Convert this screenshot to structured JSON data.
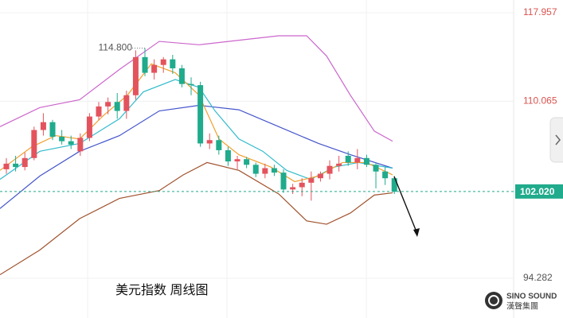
{
  "chart_data": {
    "type": "candlestick",
    "title": "美元指数 周线图",
    "logo": {
      "name": "SINO SOUND",
      "subtitle": "漢聲集團"
    },
    "up_color": "#e3535d",
    "down_color": "#1fab8c",
    "open": [
      104.0,
      104.5,
      104.2,
      105.0,
      107.5,
      108.2,
      106.9,
      106.5,
      105.6,
      106.8,
      108.7,
      109.6,
      110.0,
      109.2,
      110.6,
      114.0,
      112.6,
      113.3,
      113.8,
      113.0,
      111.6,
      111.5,
      106.3,
      106.6,
      105.7,
      104.7,
      104.9,
      104.4,
      103.6,
      104.1,
      103.7,
      102.2,
      102.4,
      102.8,
      103.2,
      103.6,
      104.3,
      105.2,
      104.6,
      105.0,
      104.4,
      103.8,
      103.2
    ],
    "high": [
      105.0,
      105.2,
      105.5,
      107.8,
      109.0,
      108.4,
      107.5,
      107.0,
      107.2,
      109.0,
      110.0,
      110.4,
      110.8,
      111.0,
      114.6,
      114.8,
      113.8,
      114.0,
      114.2,
      113.3,
      112.2,
      111.8,
      107.2,
      107.0,
      106.0,
      105.2,
      105.1,
      104.6,
      104.5,
      104.4,
      104.0,
      102.7,
      103.2,
      103.8,
      103.8,
      104.8,
      105.2,
      105.6,
      105.8,
      105.3,
      104.6,
      104.2,
      103.4
    ],
    "low": [
      103.6,
      103.8,
      103.9,
      104.8,
      107.0,
      106.6,
      106.2,
      105.8,
      105.2,
      106.5,
      108.4,
      108.9,
      108.5,
      108.5,
      110.2,
      112.3,
      112.0,
      112.6,
      112.5,
      111.3,
      110.6,
      106.0,
      105.8,
      105.3,
      104.3,
      104.0,
      104.1,
      103.3,
      103.2,
      103.4,
      101.9,
      101.8,
      101.6,
      101.2,
      102.9,
      103.1,
      103.8,
      104.3,
      104.0,
      104.2,
      102.3,
      102.6,
      101.8
    ],
    "close": [
      104.5,
      104.2,
      105.0,
      107.5,
      108.2,
      106.9,
      106.5,
      106.2,
      106.8,
      108.7,
      109.6,
      110.0,
      109.2,
      110.6,
      114.0,
      112.6,
      113.3,
      113.8,
      113.0,
      111.6,
      111.5,
      106.3,
      106.6,
      105.7,
      104.7,
      104.9,
      104.4,
      103.6,
      104.1,
      103.7,
      102.2,
      102.4,
      102.8,
      103.2,
      103.6,
      104.3,
      104.5,
      104.6,
      105.0,
      104.4,
      103.8,
      103.2,
      102.0
    ],
    "overlays": [
      {
        "color": "#cc66cc",
        "x": [
          -0.69,
          3.62,
          7.93,
          12.24,
          16.55,
          20.86,
          25.17,
          29.48,
          32.5,
          34.66,
          37.24,
          39.83,
          41.81
        ],
        "values": [
          107.8,
          109.5,
          110.2,
          112.9,
          115.4,
          115.1,
          115.5,
          115.9,
          115.9,
          114.1,
          110.6,
          107.4,
          106.5
        ]
      },
      {
        "color": "#4455cc",
        "x": [
          -0.69,
          3.62,
          7.93,
          12.24,
          16.55,
          20.86,
          25.17,
          29.48,
          33.79,
          37.24,
          41.81
        ],
        "values": [
          100.5,
          103.4,
          105.6,
          107.0,
          109.2,
          109.7,
          109.3,
          107.8,
          106.3,
          105.3,
          104.1
        ]
      },
      {
        "color": "#a0522d",
        "x": [
          -0.69,
          3.62,
          7.93,
          12.24,
          16.55,
          19.14,
          21.72,
          25.17,
          29.48,
          32.5,
          34.66,
          37.24,
          39.83,
          41.81
        ],
        "values": [
          94.6,
          96.8,
          99.6,
          101.4,
          102.1,
          103.5,
          104.6,
          103.9,
          101.8,
          99.4,
          99.1,
          100.1,
          101.7,
          101.9
        ]
      },
      {
        "color": "#33bbcc",
        "x": [
          -0.69,
          3.62,
          7.93,
          12.24,
          14.83,
          18.28,
          20.86,
          22.59,
          25.17,
          27.76,
          30.34,
          32.93,
          35.52,
          38.1,
          41.81
        ],
        "values": [
          103.1,
          105.6,
          106.3,
          108.5,
          110.9,
          112.0,
          111.3,
          109.2,
          106.7,
          105.6,
          103.9,
          103.1,
          104.2,
          104.6,
          104.1
        ]
      },
      {
        "color": "#f0a030",
        "x": [
          -0.69,
          2.76,
          5.34,
          7.93,
          10.52,
          13.1,
          15.69,
          18.28,
          20.86,
          23.02,
          25.17,
          28.62,
          31.21,
          33.79,
          36.38,
          38.97,
          41.81
        ],
        "values": [
          103.9,
          106.0,
          107.0,
          106.7,
          108.8,
          110.6,
          113.4,
          112.6,
          110.6,
          106.7,
          105.3,
          104.2,
          102.9,
          103.4,
          104.6,
          104.6,
          103.5
        ]
      }
    ],
    "annotation": {
      "value": 114.8,
      "label": "114.800"
    },
    "last_price": {
      "value": 102.02,
      "label": "102.020"
    },
    "xlim": [
      -0.69,
      54.91
    ],
    "ylim": [
      90.74,
      119.09
    ],
    "yticks": [
      94.282,
      110.065,
      117.957
    ],
    "grid": true
  }
}
